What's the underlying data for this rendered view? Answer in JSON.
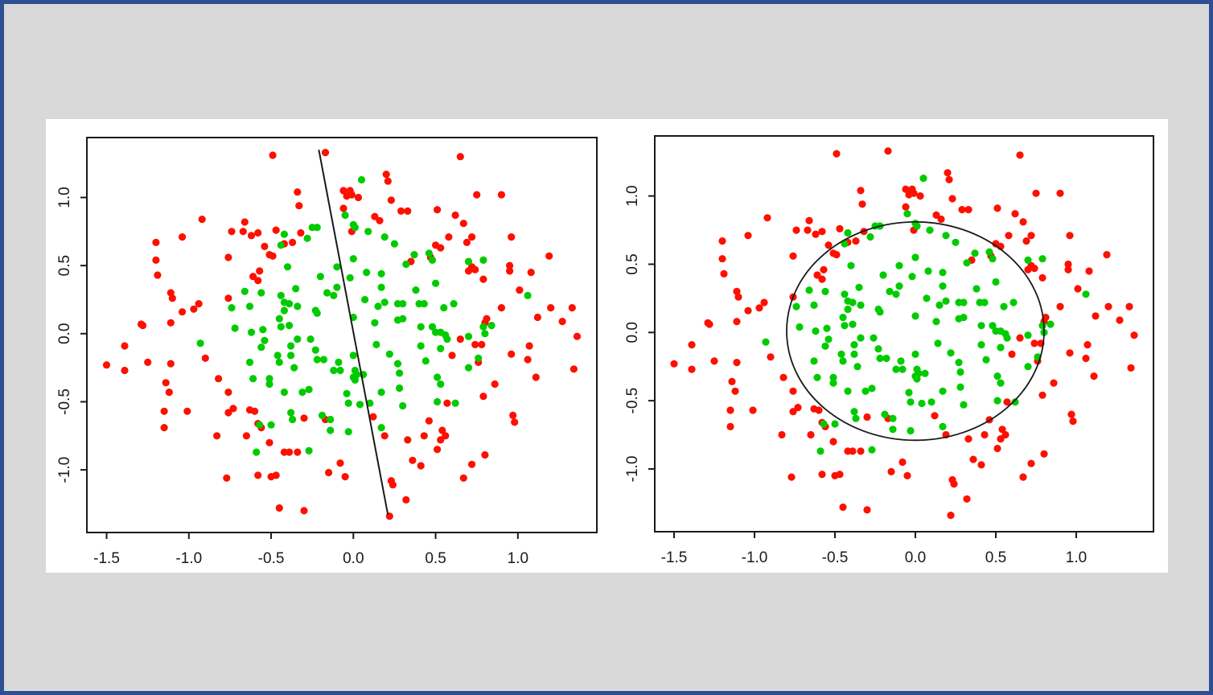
{
  "page": {
    "background_color": "#d9d9d9",
    "frame_color": "#2e4f92",
    "panel_color": "#ffffff",
    "axis_color": "#1a1a1a"
  },
  "chart_data": {
    "type": "scatter",
    "title": "",
    "xlabel": "",
    "ylabel": "",
    "xlim": [
      -1.62,
      1.48
    ],
    "ylim": [
      -1.46,
      1.44
    ],
    "grid": false,
    "legend": "none",
    "x_tick_values": [
      -1.5,
      -1.0,
      -0.5,
      0.0,
      0.5,
      1.0
    ],
    "x_tick_labels": [
      "-1.5",
      "-1.0",
      "-0.5",
      "0.0",
      "0.5",
      "1.0"
    ],
    "y_tick_values": [
      -1.0,
      -0.5,
      0.0,
      0.5,
      1.0
    ],
    "y_tick_labels": [
      "-1.0",
      "-0.5",
      "0.0",
      "0.5",
      "1.0"
    ],
    "subplots": [
      {
        "name": "linear-boundary-plot",
        "boundary": {
          "kind": "line",
          "x1": -0.21,
          "y1": 1.35,
          "x2": 0.21,
          "y2": -1.33,
          "color": "#1a1a1a"
        }
      },
      {
        "name": "circular-boundary-plot",
        "boundary": {
          "kind": "circle",
          "cx": 0.0,
          "cy": 0.01,
          "r": 0.8,
          "color": "#1a1a1a"
        }
      }
    ],
    "series": [
      {
        "name": "outer-class-red",
        "color": "#ff0f00",
        "points": [
          [
            -1.29,
            0.07
          ],
          [
            -1.39,
            -0.09
          ],
          [
            -1.5,
            -0.23
          ],
          [
            -1.39,
            -0.27
          ],
          [
            -0.92,
            0.84
          ],
          [
            -0.66,
            0.82
          ],
          [
            -0.74,
            0.75
          ],
          [
            -0.67,
            0.75
          ],
          [
            -0.62,
            0.72
          ],
          [
            -0.58,
            0.74
          ],
          [
            -1.04,
            0.71
          ],
          [
            -1.2,
            0.67
          ],
          [
            -1.2,
            0.54
          ],
          [
            -0.76,
            0.56
          ],
          [
            -0.49,
            1.31
          ],
          [
            -0.17,
            1.33
          ],
          [
            0.2,
            1.17
          ],
          [
            0.21,
            1.12
          ],
          [
            -0.34,
            1.04
          ],
          [
            -0.06,
            1.05
          ],
          [
            -0.02,
            1.05
          ],
          [
            -0.01,
            1.02
          ],
          [
            -0.04,
            1.01
          ],
          [
            0.03,
            1.0
          ],
          [
            0.23,
            0.98
          ],
          [
            -0.33,
            0.94
          ],
          [
            -0.06,
            0.92
          ],
          [
            0.29,
            0.9
          ],
          [
            0.33,
            0.9
          ],
          [
            0.13,
            0.86
          ],
          [
            0.16,
            0.83
          ],
          [
            -0.01,
            0.75
          ],
          [
            -0.47,
            0.76
          ],
          [
            -0.32,
            0.74
          ],
          [
            -0.42,
            0.66
          ],
          [
            -0.37,
            0.67
          ],
          [
            -0.54,
            0.64
          ],
          [
            -0.51,
            0.58
          ],
          [
            -0.49,
            0.57
          ],
          [
            0.35,
            0.53
          ],
          [
            -0.57,
            0.46
          ],
          [
            0.65,
            1.3
          ],
          [
            0.75,
            1.02
          ],
          [
            0.9,
            1.02
          ],
          [
            0.51,
            0.91
          ],
          [
            0.62,
            0.87
          ],
          [
            0.67,
            0.81
          ],
          [
            0.58,
            0.71
          ],
          [
            0.72,
            0.71
          ],
          [
            0.69,
            0.67
          ],
          [
            0.96,
            0.71
          ],
          [
            0.5,
            0.65
          ],
          [
            0.53,
            0.63
          ],
          [
            0.47,
            0.56
          ],
          [
            0.72,
            0.49
          ],
          [
            0.95,
            0.5
          ],
          [
            1.19,
            0.57
          ],
          [
            -1.19,
            0.43
          ],
          [
            -0.61,
            0.42
          ],
          [
            -0.58,
            0.39
          ],
          [
            -1.11,
            0.3
          ],
          [
            -1.1,
            0.26
          ],
          [
            -0.76,
            0.26
          ],
          [
            -0.94,
            0.22
          ],
          [
            -1.04,
            0.16
          ],
          [
            -0.97,
            0.18
          ],
          [
            -1.28,
            0.06
          ],
          [
            -1.11,
            0.08
          ],
          [
            -0.9,
            -0.18
          ],
          [
            -1.25,
            -0.21
          ],
          [
            -1.11,
            -0.22
          ],
          [
            -1.14,
            -0.36
          ],
          [
            -0.82,
            -0.33
          ],
          [
            -1.12,
            -0.43
          ],
          [
            -0.76,
            -0.43
          ],
          [
            0.7,
            0.46
          ],
          [
            0.74,
            0.47
          ],
          [
            0.79,
            0.4
          ],
          [
            0.95,
            0.46
          ],
          [
            1.08,
            0.45
          ],
          [
            1.01,
            0.32
          ],
          [
            0.9,
            0.19
          ],
          [
            1.2,
            0.19
          ],
          [
            1.33,
            0.19
          ],
          [
            1.12,
            0.12
          ],
          [
            1.27,
            0.09
          ],
          [
            0.81,
            0.11
          ],
          [
            0.8,
            0.08
          ],
          [
            0.65,
            -0.04
          ],
          [
            0.74,
            -0.08
          ],
          [
            0.78,
            -0.08
          ],
          [
            0.6,
            -0.16
          ],
          [
            1.07,
            -0.09
          ],
          [
            1.36,
            -0.02
          ],
          [
            0.96,
            -0.15
          ],
          [
            1.06,
            -0.19
          ],
          [
            0.76,
            -0.21
          ],
          [
            1.34,
            -0.26
          ],
          [
            1.11,
            -0.32
          ],
          [
            0.86,
            -0.37
          ],
          [
            0.79,
            -0.46
          ],
          [
            -1.15,
            -0.57
          ],
          [
            -1.01,
            -0.57
          ],
          [
            -1.15,
            -0.69
          ],
          [
            -0.76,
            -0.58
          ],
          [
            -0.73,
            -0.55
          ],
          [
            -0.63,
            -0.56
          ],
          [
            -0.6,
            -0.57
          ],
          [
            -0.83,
            -0.75
          ],
          [
            -0.65,
            -0.75
          ],
          [
            -0.58,
            -0.66
          ],
          [
            -0.77,
            -1.06
          ],
          [
            -0.58,
            -1.04
          ],
          [
            -0.3,
            -0.62
          ],
          [
            -0.17,
            -0.63
          ],
          [
            0.12,
            -0.61
          ],
          [
            -0.56,
            -0.69
          ],
          [
            0.19,
            -0.75
          ],
          [
            -0.51,
            -0.8
          ],
          [
            -0.42,
            -0.87
          ],
          [
            -0.39,
            -0.87
          ],
          [
            -0.34,
            -0.87
          ],
          [
            0.33,
            -0.78
          ],
          [
            0.43,
            -0.75
          ],
          [
            0.46,
            -0.64
          ],
          [
            -0.08,
            -0.95
          ],
          [
            0.36,
            -0.93
          ],
          [
            0.41,
            -0.97
          ],
          [
            -0.15,
            -1.02
          ],
          [
            -0.05,
            -1.05
          ],
          [
            -0.5,
            -1.05
          ],
          [
            -0.47,
            -1.04
          ],
          [
            0.23,
            -1.08
          ],
          [
            0.24,
            -1.11
          ],
          [
            0.32,
            -1.22
          ],
          [
            -0.45,
            -1.28
          ],
          [
            -0.3,
            -1.3
          ],
          [
            0.22,
            -1.34
          ],
          [
            0.57,
            -0.51
          ],
          [
            0.97,
            -0.6
          ],
          [
            0.98,
            -0.65
          ],
          [
            0.54,
            -0.71
          ],
          [
            0.56,
            -0.75
          ],
          [
            0.53,
            -0.78
          ],
          [
            0.51,
            -0.85
          ],
          [
            0.8,
            -0.89
          ],
          [
            0.72,
            -0.96
          ],
          [
            0.67,
            -1.06
          ]
        ]
      },
      {
        "name": "inner-class-green",
        "color": "#00cb00",
        "points": [
          [
            0.05,
            1.13
          ],
          [
            -0.05,
            0.87
          ],
          [
            0.0,
            0.8
          ],
          [
            0.01,
            0.78
          ],
          [
            0.09,
            0.75
          ],
          [
            -0.42,
            0.73
          ],
          [
            -0.25,
            0.78
          ],
          [
            -0.22,
            0.78
          ],
          [
            0.19,
            0.71
          ],
          [
            -0.28,
            0.7
          ],
          [
            -0.44,
            0.65
          ],
          [
            0.25,
            0.66
          ],
          [
            0.0,
            0.55
          ],
          [
            0.37,
            0.58
          ],
          [
            0.32,
            0.51
          ],
          [
            0.46,
            0.59
          ],
          [
            -0.4,
            0.49
          ],
          [
            -0.1,
            0.49
          ],
          [
            0.48,
            0.54
          ],
          [
            0.7,
            0.53
          ],
          [
            0.79,
            0.54
          ],
          [
            -0.66,
            0.31
          ],
          [
            -0.74,
            0.19
          ],
          [
            -0.63,
            0.2
          ],
          [
            -0.72,
            0.04
          ],
          [
            -0.62,
            0.01
          ],
          [
            -0.93,
            -0.07
          ],
          [
            -0.63,
            -0.21
          ],
          [
            -0.61,
            -0.33
          ],
          [
            -0.2,
            0.42
          ],
          [
            -0.02,
            0.41
          ],
          [
            0.08,
            0.45
          ],
          [
            0.17,
            0.44
          ],
          [
            -0.35,
            0.33
          ],
          [
            -0.1,
            0.34
          ],
          [
            -0.16,
            0.3
          ],
          [
            -0.12,
            0.28
          ],
          [
            -0.44,
            0.28
          ],
          [
            -0.56,
            0.3
          ],
          [
            -0.42,
            0.23
          ],
          [
            -0.39,
            0.22
          ],
          [
            -0.34,
            0.2
          ],
          [
            -0.42,
            0.17
          ],
          [
            -0.23,
            0.17
          ],
          [
            -0.22,
            0.15
          ],
          [
            -0.45,
            0.11
          ],
          [
            -0.44,
            0.05
          ],
          [
            -0.39,
            0.06
          ],
          [
            -0.55,
            0.03
          ],
          [
            0.0,
            0.12
          ],
          [
            0.07,
            0.25
          ],
          [
            0.15,
            0.2
          ],
          [
            0.19,
            0.23
          ],
          [
            0.13,
            0.08
          ],
          [
            0.27,
            0.22
          ],
          [
            0.3,
            0.22
          ],
          [
            0.27,
            0.1
          ],
          [
            0.3,
            0.11
          ],
          [
            0.4,
            0.22
          ],
          [
            0.43,
            0.22
          ],
          [
            0.38,
            0.32
          ],
          [
            0.17,
            0.34
          ],
          [
            0.41,
            0.05
          ],
          [
            -0.54,
            -0.05
          ],
          [
            -0.56,
            -0.1
          ],
          [
            -0.34,
            -0.04
          ],
          [
            -0.26,
            -0.04
          ],
          [
            -0.38,
            -0.09
          ],
          [
            -0.23,
            -0.12
          ],
          [
            -0.46,
            -0.16
          ],
          [
            -0.38,
            -0.16
          ],
          [
            -0.45,
            -0.21
          ],
          [
            -0.36,
            -0.25
          ],
          [
            -0.22,
            -0.19
          ],
          [
            -0.18,
            -0.19
          ],
          [
            -0.09,
            -0.21
          ],
          [
            -0.12,
            -0.27
          ],
          [
            -0.08,
            -0.27
          ],
          [
            0.0,
            -0.16
          ],
          [
            0.01,
            -0.27
          ],
          [
            0.0,
            -0.32
          ],
          [
            0.02,
            -0.3
          ],
          [
            0.06,
            -0.3
          ],
          [
            0.01,
            -0.34
          ],
          [
            0.14,
            -0.08
          ],
          [
            0.22,
            -0.15
          ],
          [
            0.27,
            -0.22
          ],
          [
            0.41,
            -0.09
          ],
          [
            0.44,
            -0.2
          ],
          [
            0.28,
            -0.29
          ],
          [
            -0.51,
            -0.33
          ],
          [
            -0.51,
            -0.37
          ],
          [
            -0.42,
            -0.43
          ],
          [
            -0.31,
            -0.43
          ],
          [
            -0.27,
            -0.41
          ],
          [
            -0.04,
            -0.44
          ],
          [
            0.17,
            -0.43
          ],
          [
            0.28,
            -0.4
          ],
          [
            0.5,
            0.37
          ],
          [
            1.06,
            0.28
          ],
          [
            0.55,
            0.19
          ],
          [
            0.61,
            0.22
          ],
          [
            0.84,
            0.06
          ],
          [
            0.79,
            0.05
          ],
          [
            0.8,
            0.0
          ],
          [
            0.48,
            0.05
          ],
          [
            0.5,
            0.01
          ],
          [
            0.53,
            0.01
          ],
          [
            0.56,
            -0.01
          ],
          [
            0.57,
            -0.04
          ],
          [
            0.7,
            -0.02
          ],
          [
            0.53,
            -0.11
          ],
          [
            0.76,
            -0.18
          ],
          [
            0.7,
            -0.25
          ],
          [
            0.51,
            -0.32
          ],
          [
            0.53,
            -0.37
          ],
          [
            0.62,
            -0.51
          ],
          [
            -0.59,
            -0.87
          ],
          [
            -0.03,
            -0.51
          ],
          [
            0.04,
            -0.52
          ],
          [
            0.1,
            -0.51
          ],
          [
            0.3,
            -0.53
          ],
          [
            -0.38,
            -0.58
          ],
          [
            -0.37,
            -0.63
          ],
          [
            -0.19,
            -0.6
          ],
          [
            -0.14,
            -0.63
          ],
          [
            -0.57,
            -0.67
          ],
          [
            -0.5,
            -0.67
          ],
          [
            -0.14,
            -0.71
          ],
          [
            -0.03,
            -0.72
          ],
          [
            0.17,
            -0.69
          ],
          [
            -0.27,
            -0.86
          ],
          [
            0.51,
            -0.5
          ]
        ]
      }
    ]
  }
}
